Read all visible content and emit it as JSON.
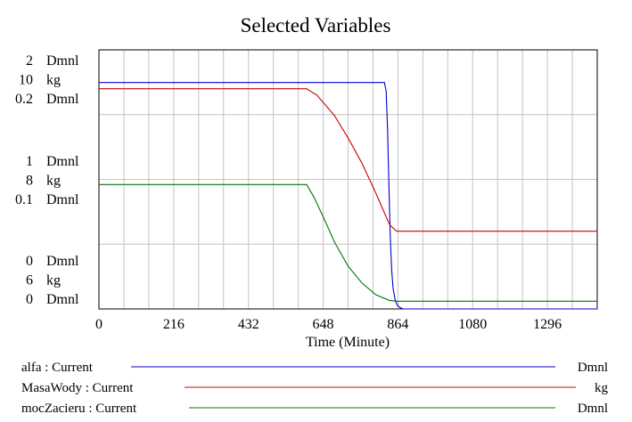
{
  "chart_data": {
    "type": "line",
    "title": "Selected Variables",
    "xlabel": "Time (Minute)",
    "xlim": [
      0,
      1440
    ],
    "x_ticks": [
      0,
      216,
      432,
      648,
      864,
      1080,
      1296
    ],
    "grid": true,
    "legend_position": "bottom",
    "y_axes": [
      {
        "unit": "Dmnl",
        "ticks": [
          "2",
          "1",
          "0"
        ],
        "range": [
          0,
          2
        ]
      },
      {
        "unit": "kg",
        "ticks": [
          "10",
          "8",
          "6"
        ],
        "range": [
          6,
          10
        ]
      },
      {
        "unit": "Dmnl",
        "ticks": [
          "0.2",
          "0.1",
          "0"
        ],
        "range": [
          0,
          0.2
        ]
      }
    ],
    "series": [
      {
        "name": "alfa : Current",
        "unit": "Dmnl",
        "color": "#0000cc",
        "axis": 2,
        "x": [
          0,
          825,
          830,
          834,
          838,
          842,
          846,
          850,
          856,
          862,
          870,
          880,
          1440
        ],
        "y": [
          0.1748,
          0.1748,
          0.168,
          0.14,
          0.095,
          0.055,
          0.03,
          0.016,
          0.007,
          0.003,
          0.001,
          0,
          0
        ]
      },
      {
        "name": "MasaWody : Current",
        "unit": "kg",
        "color": "#cc0000",
        "axis": 1,
        "x": [
          0,
          600,
          630,
          680,
          720,
          760,
          800,
          840,
          860,
          1440
        ],
        "y": [
          9.4,
          9.4,
          9.3,
          8.99,
          8.64,
          8.25,
          7.79,
          7.3,
          7.2,
          7.2
        ]
      },
      {
        "name": "mocZacieru : Current",
        "unit": "Dmnl",
        "color": "#007700",
        "axis": 0,
        "x": [
          0,
          600,
          620,
          650,
          680,
          720,
          760,
          800,
          840,
          860,
          1440
        ],
        "y": [
          0.96,
          0.96,
          0.87,
          0.7,
          0.52,
          0.33,
          0.2,
          0.11,
          0.065,
          0.06,
          0.06
        ]
      }
    ]
  }
}
